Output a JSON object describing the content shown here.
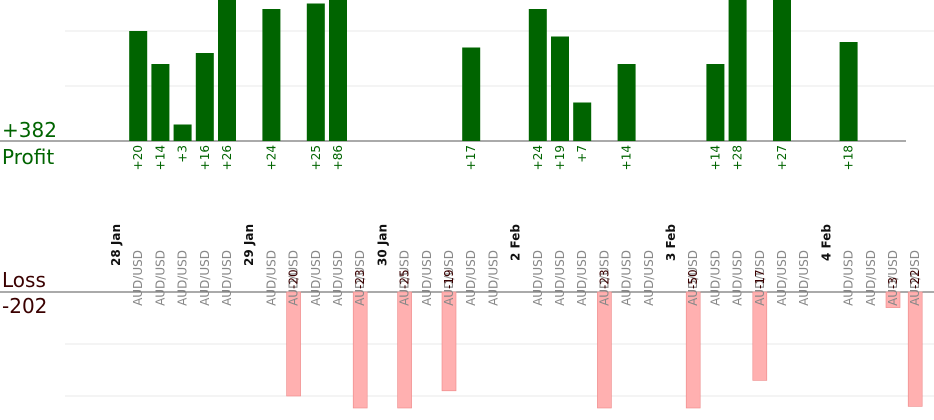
{
  "chart_data": {
    "type": "bar",
    "profit": {
      "total": "+382",
      "label": "Profit",
      "color": "#006400",
      "ylim": [
        0,
        26
      ],
      "grid_values": [
        10,
        20
      ]
    },
    "loss": {
      "total": "-202",
      "label": "Loss",
      "color": "#ffb0b0",
      "ylim": [
        0,
        22
      ],
      "grid_values": [
        10,
        20
      ]
    },
    "date_labels": [
      "28 Jan",
      "29 Jan",
      "30 Jan",
      "2 Feb",
      "3 Feb",
      "4 Feb"
    ],
    "trades": [
      {
        "slot": 0,
        "date": "28 Jan"
      },
      {
        "slot": 1,
        "pair": "AUD/USD",
        "value": 20
      },
      {
        "slot": 2,
        "pair": "AUD/USD",
        "value": 14
      },
      {
        "slot": 3,
        "pair": "AUD/USD",
        "value": 3
      },
      {
        "slot": 4,
        "pair": "AUD/USD",
        "value": 16
      },
      {
        "slot": 5,
        "pair": "AUD/USD",
        "value": 26
      },
      {
        "slot": 6,
        "date": "29 Jan"
      },
      {
        "slot": 7,
        "pair": "AUD/USD",
        "value": 24
      },
      {
        "slot": 8,
        "pair": "AUD/USD",
        "value": -20
      },
      {
        "slot": 9,
        "pair": "AUD/USD",
        "value": 25
      },
      {
        "slot": 10,
        "pair": "AUD/USD",
        "value": 86
      },
      {
        "slot": 11,
        "pair": "AUD/USD",
        "value": -23
      },
      {
        "slot": 12,
        "date": "30 Jan"
      },
      {
        "slot": 13,
        "pair": "AUD/USD",
        "value": -25
      },
      {
        "slot": 14,
        "pair": "AUD/USD",
        "value": 0
      },
      {
        "slot": 15,
        "pair": "AUD/USD",
        "value": -19
      },
      {
        "slot": 16,
        "pair": "AUD/USD",
        "value": 17
      },
      {
        "slot": 17,
        "pair": "AUD/USD",
        "value": 0
      },
      {
        "slot": 18,
        "date": "2 Feb"
      },
      {
        "slot": 19,
        "pair": "AUD/USD",
        "value": 24
      },
      {
        "slot": 20,
        "pair": "AUD/USD",
        "value": 19
      },
      {
        "slot": 21,
        "pair": "AUD/USD",
        "value": 7
      },
      {
        "slot": 22,
        "pair": "AUD/USD",
        "value": -23
      },
      {
        "slot": 23,
        "pair": "AUD/USD",
        "value": 14
      },
      {
        "slot": 24,
        "pair": "AUD/USD",
        "value": 0
      },
      {
        "slot": 25,
        "date": "3 Feb"
      },
      {
        "slot": 26,
        "pair": "AUD/USD",
        "value": -50
      },
      {
        "slot": 27,
        "pair": "AUD/USD",
        "value": 14
      },
      {
        "slot": 28,
        "pair": "AUD/USD",
        "value": 28
      },
      {
        "slot": 29,
        "pair": "AUD/USD",
        "value": -17
      },
      {
        "slot": 30,
        "pair": "AUD/USD",
        "value": 27
      },
      {
        "slot": 31,
        "pair": "AUD/USD",
        "value": 0
      },
      {
        "slot": 32,
        "date": "4 Feb"
      },
      {
        "slot": 33,
        "pair": "AUD/USD",
        "value": 18
      },
      {
        "slot": 34,
        "pair": "AUD/USD",
        "value": 0
      },
      {
        "slot": 35,
        "pair": "AUD/USD",
        "value": -3
      },
      {
        "slot": 36,
        "pair": "AUD/USD",
        "value": -22
      }
    ]
  }
}
